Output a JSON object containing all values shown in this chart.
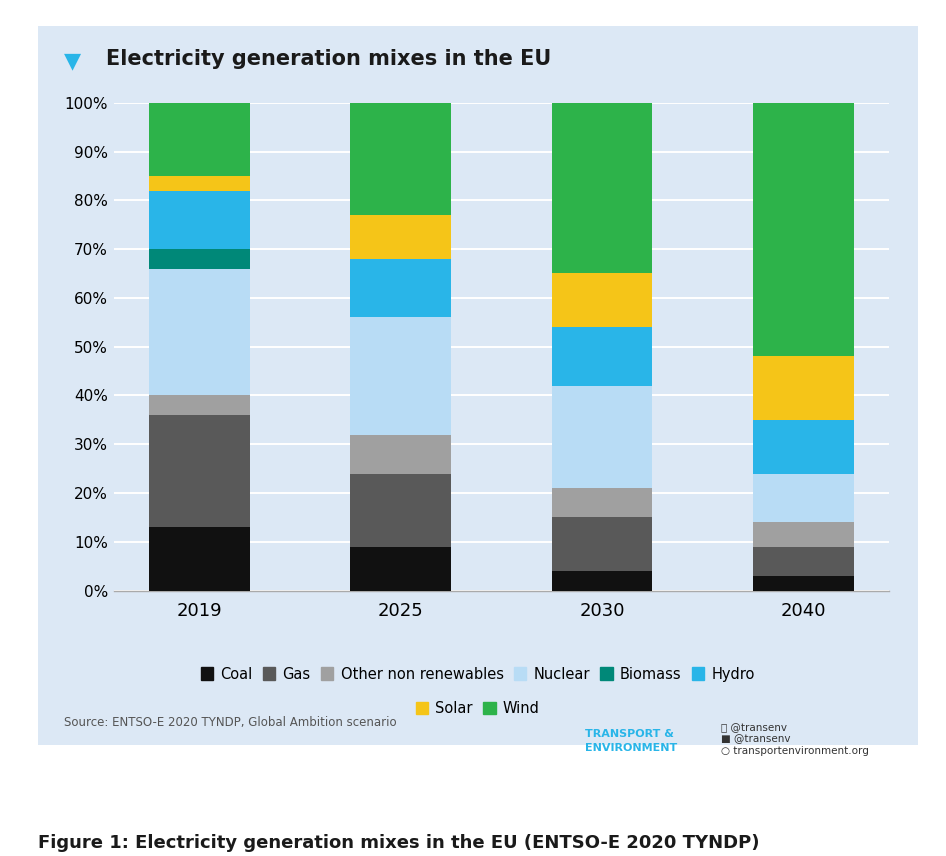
{
  "years": [
    "2019",
    "2025",
    "2030",
    "2040"
  ],
  "categories": [
    "Coal",
    "Gas",
    "Other non renewables",
    "Nuclear",
    "Biomass",
    "Hydro",
    "Solar",
    "Wind"
  ],
  "colors": [
    "#111111",
    "#595959",
    "#a0a0a0",
    "#b8dcf5",
    "#008878",
    "#29b5e8",
    "#f5c518",
    "#2db34a"
  ],
  "values": [
    [
      13,
      23,
      4,
      26,
      4,
      12,
      3,
      15
    ],
    [
      9,
      15,
      8,
      24,
      0,
      12,
      9,
      23
    ],
    [
      4,
      11,
      6,
      21,
      0,
      12,
      11,
      35
    ],
    [
      3,
      6,
      5,
      10,
      0,
      11,
      13,
      52
    ]
  ],
  "title": "Electricity generation mixes in the EU",
  "title_color": "#1a1a1a",
  "card_bg": "#dce8f5",
  "source_text": "Source: ENTSO-E 2020 TYNDP, Global Ambition scenario",
  "figure_caption": "Figure 1: Electricity generation mixes in the EU (ENTSO-E 2020 TYNDP)",
  "accent_color": "#29b5e8",
  "te_color": "#29b5e8",
  "bar_width": 0.5,
  "yticks": [
    0,
    10,
    20,
    30,
    40,
    50,
    60,
    70,
    80,
    90,
    100
  ],
  "ytick_labels": [
    "0%",
    "10%",
    "20%",
    "30%",
    "40%",
    "50%",
    "60%",
    "70%",
    "80%",
    "90%",
    "100%"
  ]
}
